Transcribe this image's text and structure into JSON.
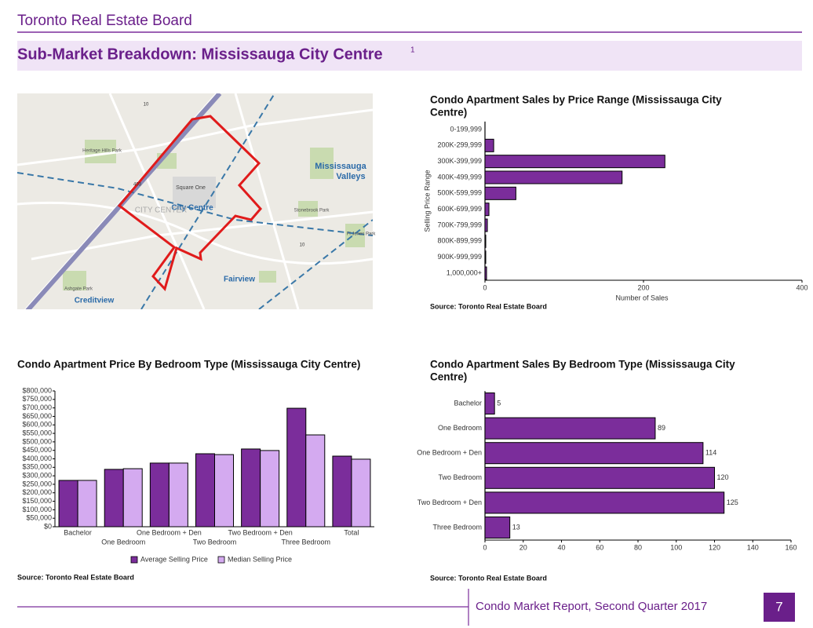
{
  "header": {
    "organization": "Toronto Real Estate Board",
    "title": "Sub-Market Breakdown: Mississauga City Centre",
    "footnote_mark": "1"
  },
  "map": {
    "labels": [
      "City Centre",
      "Mississauga",
      "Valleys",
      "Fairview",
      "Creditview",
      "Square One",
      "CITY CENTER",
      "Heritage Hills Park",
      "Stonebrook Park",
      "Ashgate Park",
      "Fl Jones Park",
      "10",
      "403",
      "10"
    ]
  },
  "chart_data": [
    {
      "type": "bar",
      "orientation": "horizontal",
      "title": [
        "Condo Apartment Sales by Price Range (Mississauga City",
        "Centre)"
      ],
      "categories": [
        "0-199,999",
        "200K-299,999",
        "300K-399,999",
        "400K-499,999",
        "500K-599,999",
        "600K-699,999",
        "700K-799,999",
        "800K-899,999",
        "900K-999,999",
        "1,000,000+"
      ],
      "values": [
        0,
        11,
        227,
        173,
        39,
        5,
        3,
        1,
        1,
        2
      ],
      "color": "#7b2d9b",
      "xlim": [
        0,
        400
      ],
      "xticks": [
        0,
        200,
        400
      ],
      "x_label": "Number of Sales",
      "y_label": "Selling Price Range",
      "source": "Source: Toronto Real Estate Board"
    },
    {
      "type": "bar",
      "title": [
        "Condo Apartment Price By Bedroom Type (Mississauga City Centre)"
      ],
      "categories": [
        "Bachelor",
        "One Bedroom",
        "One Bedroom + Den",
        "Two Bedroom",
        "Two Bedroom + Den",
        "Three Bedroom",
        "Total"
      ],
      "series": [
        {
          "name": "Average Selling Price",
          "color": "#7b2d9b",
          "values": [
            273000,
            338000,
            375000,
            430000,
            458000,
            698000,
            416000
          ]
        },
        {
          "name": "Median Selling Price",
          "color": "#d4aaf0",
          "values": [
            273000,
            342000,
            375000,
            425000,
            449000,
            541000,
            398000
          ]
        }
      ],
      "ylim": [
        0,
        800000
      ],
      "yticks": [
        {
          "value": 0,
          "label": "$0"
        },
        {
          "value": 50000,
          "label": "$50,000"
        },
        {
          "value": 100000,
          "label": "$100,000"
        },
        {
          "value": 150000,
          "label": "$150,000"
        },
        {
          "value": 200000,
          "label": "$200,000"
        },
        {
          "value": 250000,
          "label": "$250,000"
        },
        {
          "value": 300000,
          "label": "$300,000"
        },
        {
          "value": 350000,
          "label": "$350,000"
        },
        {
          "value": 400000,
          "label": "$400,000"
        },
        {
          "value": 450000,
          "label": "$450,000"
        },
        {
          "value": 500000,
          "label": "$500,000"
        },
        {
          "value": 550000,
          "label": "$550,000"
        },
        {
          "value": 600000,
          "label": "$600,000"
        },
        {
          "value": 650000,
          "label": "$650,000"
        },
        {
          "value": 700000,
          "label": "$700,000"
        },
        {
          "value": 750000,
          "label": "$750,000"
        },
        {
          "value": 800000,
          "label": "$800,000"
        }
      ],
      "legend": "bottom",
      "source": "Source: Toronto Real Estate Board"
    },
    {
      "type": "bar",
      "orientation": "horizontal",
      "title": [
        "Condo Apartment Sales By Bedroom Type (Mississauga City",
        "Centre)"
      ],
      "categories": [
        "Bachelor",
        "One Bedroom",
        "One Bedroom + Den",
        "Two Bedroom",
        "Two Bedroom + Den",
        "Three Bedroom"
      ],
      "values": [
        5,
        89,
        114,
        120,
        125,
        13
      ],
      "color": "#7b2d9b",
      "data_labels": true,
      "xlim": [
        0,
        160
      ],
      "xticks": [
        0,
        20,
        40,
        60,
        80,
        100,
        120,
        140,
        160
      ],
      "source": "Source: Toronto Real Estate Board"
    }
  ],
  "footer": {
    "report": "Condo Market Report, Second Quarter 2017",
    "page": "7"
  }
}
